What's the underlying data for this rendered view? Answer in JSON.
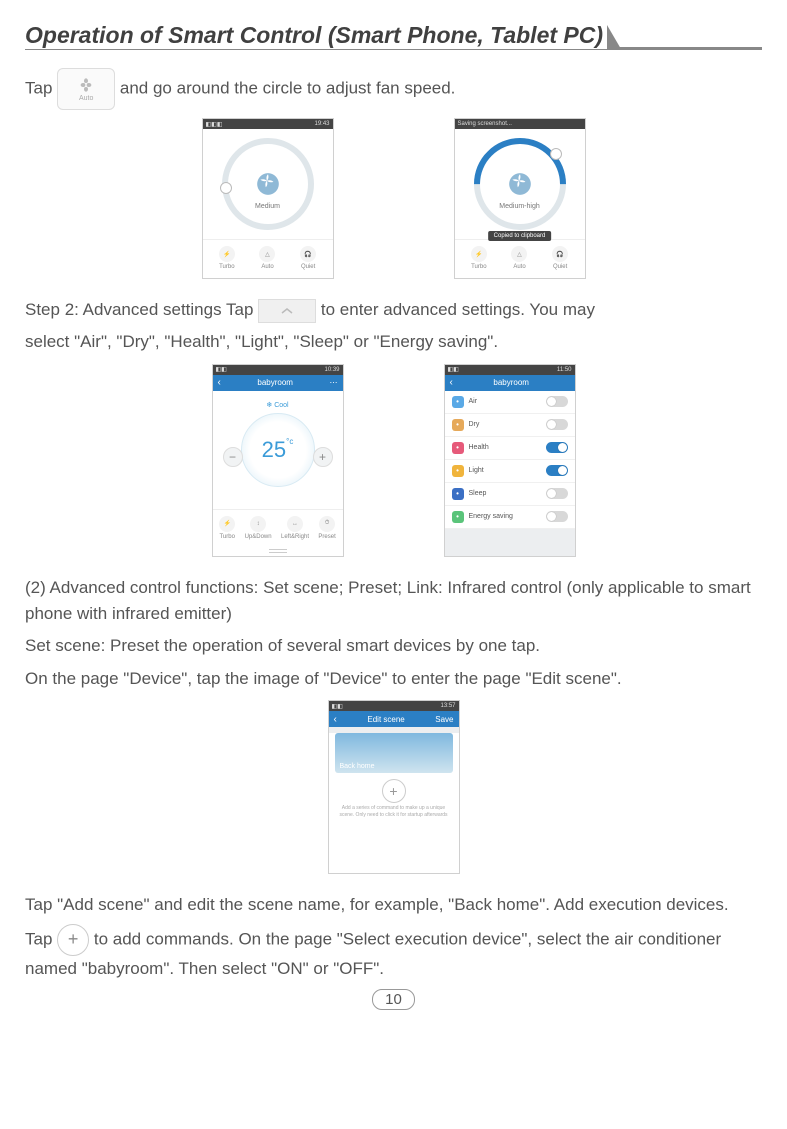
{
  "title": "Operation of Smart Control (Smart Phone, Tablet PC)",
  "line1_pre": "Tap",
  "line1_post": " and go around the circle to adjust fan speed.",
  "step2_pre": "Step 2: Advanced settings  Tap ",
  "step2_mid": " to ",
  "step2_post": "enter advanced settings. You may",
  "step2_line2": "select \"Air\", \"Dry\", \"Health\", \"Light\", \"Sleep\" or \"Energy saving\".",
  "para3a": "(2) Advanced control functions: Set scene; Preset; Link: Infrared control (only applicable to smart phone with infrared emitter)",
  "para3b": "Set scene: Preset the operation of several smart devices by one tap.",
  "para3c": "On the page \"Device\", tap the image of \"Device\" to enter the page \"Edit scene\".",
  "para4": "Tap \"Add scene\" and edit the scene name, for example, \"Back home\". Add execution devices.",
  "para5_pre": "Tap ",
  "para5_post": " to add commands. On the page \"Select execution device\", select the air conditioner named \"babyroom\". Then select \"ON\" or \"OFF\".",
  "page_number": "10",
  "shot_fan": {
    "time1": "19:43",
    "label1": "Medium",
    "status2": "Saving screenshot...",
    "label2": "Medium-high",
    "toast": "Copied to clipboard",
    "icons": {
      "a": "Turbo",
      "b": "Auto",
      "c": "Quiet"
    }
  },
  "shot_cool": {
    "time": "10:39",
    "title": "babyroom",
    "mode": "❄ Cool",
    "temp": "25",
    "deg": "°c",
    "icons": {
      "a": "Turbo",
      "b": "Up&Down",
      "c": "Left&Right",
      "d": "Preset"
    }
  },
  "shot_settings": {
    "time": "11:50",
    "title": "babyroom",
    "rows": [
      {
        "label": "Air",
        "color": "#5aa9e6",
        "on": false
      },
      {
        "label": "Dry",
        "color": "#e6a95a",
        "on": false
      },
      {
        "label": "Health",
        "color": "#e65a7a",
        "on": true
      },
      {
        "label": "Light",
        "color": "#f0b43c",
        "on": true
      },
      {
        "label": "Sleep",
        "color": "#3b6fc4",
        "on": false
      },
      {
        "label": "Energy saving",
        "color": "#5ac47a",
        "on": false
      }
    ]
  },
  "shot_scene": {
    "time": "13:57",
    "title": "Edit scene",
    "save": "Save",
    "name": "Back home",
    "hint": "Add a series of command to make up a unique scene. Only need to click it for startup afterwards"
  },
  "colors": {
    "accent": "#2b7fc4",
    "text": "#555555"
  }
}
